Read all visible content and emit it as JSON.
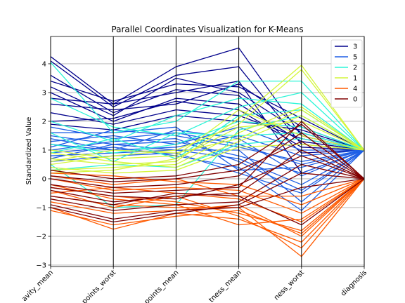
{
  "chart_data": {
    "type": "parallel_coordinates",
    "title": "Parallel Coordinates Visualization for K-Means",
    "ylabel": "Standardized Value",
    "xlabel": "",
    "axes": [
      "avity_mean",
      "points_worst",
      "points_mean",
      "tness_mean",
      "ness_worst",
      "diagnosis"
    ],
    "ylim": [
      -3.05,
      4.95
    ],
    "yticks": [
      -3,
      -2,
      -1,
      0,
      1,
      2,
      3,
      4
    ],
    "grid": true,
    "legend_position": "top-right",
    "series": [
      {
        "name": "3",
        "color": "#00008b",
        "lines": [
          [
            4.25,
            2.6,
            3.9,
            4.55,
            1.5,
            1.0
          ],
          [
            4.1,
            2.5,
            3.6,
            3.9,
            1.2,
            1.0
          ],
          [
            3.4,
            2.7,
            3.3,
            3.2,
            2.1,
            1.0
          ],
          [
            3.2,
            2.2,
            3.5,
            3.0,
            1.6,
            1.0
          ],
          [
            3.0,
            2.0,
            2.8,
            2.6,
            1.3,
            1.0
          ],
          [
            2.6,
            2.4,
            2.6,
            3.3,
            1.8,
            1.0
          ],
          [
            2.3,
            1.9,
            2.4,
            2.2,
            1.4,
            1.0
          ],
          [
            2.0,
            2.1,
            2.7,
            2.4,
            1.1,
            1.0
          ],
          [
            3.6,
            2.3,
            3.1,
            2.9,
            0.9,
            1.0
          ],
          [
            1.9,
            1.7,
            2.2,
            2.0,
            1.7,
            1.0
          ],
          [
            2.8,
            2.6,
            3.0,
            3.4,
            0.2,
            1.0
          ]
        ]
      },
      {
        "name": "5",
        "color": "#1e5fe6",
        "lines": [
          [
            1.8,
            1.4,
            1.6,
            1.2,
            0.5,
            1.0
          ],
          [
            1.5,
            1.2,
            1.3,
            0.8,
            0.2,
            1.0
          ],
          [
            1.2,
            1.0,
            1.1,
            1.5,
            0.8,
            1.0
          ],
          [
            1.0,
            1.3,
            1.4,
            0.6,
            -0.4,
            1.0
          ],
          [
            0.8,
            0.9,
            1.0,
            1.0,
            -0.8,
            1.0
          ],
          [
            1.6,
            1.6,
            1.8,
            0.3,
            0.4,
            1.0
          ],
          [
            1.3,
            1.5,
            1.2,
            1.8,
            1.0,
            1.0
          ],
          [
            0.9,
            1.1,
            0.8,
            0.4,
            -1.1,
            1.0
          ],
          [
            1.1,
            1.7,
            1.5,
            1.1,
            0.6,
            1.0
          ],
          [
            0.6,
            0.8,
            0.9,
            0.2,
            -0.5,
            1.0
          ],
          [
            1.4,
            1.0,
            1.7,
            1.4,
            0.1,
            1.0
          ],
          [
            0.7,
            1.2,
            1.0,
            0.7,
            -0.2,
            1.0
          ]
        ]
      },
      {
        "name": "2",
        "color": "#2af5d8",
        "lines": [
          [
            4.05,
            1.6,
            2.0,
            3.4,
            3.4,
            1.0
          ],
          [
            2.8,
            1.8,
            1.5,
            2.5,
            3.0,
            1.0
          ],
          [
            0.5,
            -1.0,
            -0.9,
            1.7,
            2.2,
            1.0
          ],
          [
            1.2,
            0.9,
            1.2,
            2.0,
            1.8,
            1.0
          ],
          [
            0.9,
            1.4,
            0.7,
            2.2,
            2.4,
            1.0
          ],
          [
            1.6,
            0.6,
            1.6,
            1.5,
            1.6,
            1.0
          ],
          [
            0.3,
            0.5,
            0.4,
            1.2,
            1.4,
            1.0
          ],
          [
            2.0,
            1.3,
            2.2,
            2.8,
            2.6,
            1.0
          ]
        ]
      },
      {
        "name": "1",
        "color": "#d4f53c",
        "lines": [
          [
            0.7,
            0.5,
            0.6,
            2.1,
            3.95,
            1.0
          ],
          [
            0.5,
            0.8,
            1.0,
            1.9,
            3.8,
            1.0
          ],
          [
            0.3,
            0.4,
            0.5,
            1.6,
            2.5,
            1.0
          ],
          [
            0.9,
            0.6,
            0.4,
            1.3,
            2.2,
            1.0
          ],
          [
            0.2,
            0.3,
            0.7,
            1.8,
            2.0,
            1.0
          ],
          [
            1.0,
            0.7,
            0.8,
            2.4,
            1.5,
            1.0
          ],
          [
            0.4,
            0.2,
            0.3,
            1.1,
            1.2,
            1.0
          ],
          [
            0.6,
            1.0,
            0.9,
            1.4,
            2.4,
            1.0
          ]
        ]
      },
      {
        "name": "4",
        "color": "#ff5a00",
        "lines": [
          [
            -0.3,
            -0.6,
            -0.8,
            -1.2,
            -1.8,
            0.0
          ],
          [
            -0.6,
            -0.9,
            -1.0,
            -1.0,
            -2.7,
            0.0
          ],
          [
            -1.0,
            -1.75,
            -1.2,
            -1.4,
            -2.2,
            0.0
          ],
          [
            -0.5,
            -0.3,
            -0.5,
            -0.7,
            -1.5,
            0.0
          ],
          [
            -0.8,
            -1.2,
            -1.1,
            -0.9,
            -2.0,
            0.0
          ],
          [
            0.0,
            -0.4,
            -0.3,
            -0.4,
            -1.2,
            0.0
          ],
          [
            -0.2,
            -0.7,
            -0.9,
            -1.6,
            -1.4,
            0.0
          ],
          [
            -1.1,
            -1.6,
            -1.3,
            -1.1,
            -1.9,
            0.0
          ],
          [
            0.2,
            0.1,
            -0.1,
            -0.2,
            -0.9,
            0.0
          ],
          [
            -0.4,
            -1.0,
            -0.6,
            -1.3,
            -2.4,
            0.0
          ],
          [
            0.1,
            -0.2,
            0.0,
            -0.6,
            -0.6,
            0.0
          ]
        ]
      },
      {
        "name": "0",
        "color": "#800000",
        "lines": [
          [
            -0.2,
            -0.5,
            -0.4,
            -0.3,
            2.0,
            0.0
          ],
          [
            0.0,
            -0.3,
            -0.2,
            0.1,
            1.6,
            0.0
          ],
          [
            -0.4,
            -0.8,
            -0.6,
            -0.5,
            1.0,
            0.0
          ],
          [
            -0.7,
            -1.1,
            -0.9,
            -0.8,
            0.5,
            0.0
          ],
          [
            -0.9,
            -1.4,
            -1.1,
            -1.0,
            -0.3,
            0.0
          ],
          [
            0.1,
            -0.1,
            0.0,
            0.3,
            1.3,
            0.0
          ],
          [
            -0.3,
            -0.6,
            -0.7,
            -0.2,
            0.8,
            0.0
          ],
          [
            -0.6,
            -0.9,
            -0.5,
            -0.6,
            -1.6,
            0.0
          ],
          [
            -1.0,
            -1.5,
            -1.2,
            -0.9,
            0.2,
            0.0
          ],
          [
            0.3,
            0.0,
            0.1,
            0.5,
            1.9,
            0.0
          ]
        ]
      }
    ]
  }
}
